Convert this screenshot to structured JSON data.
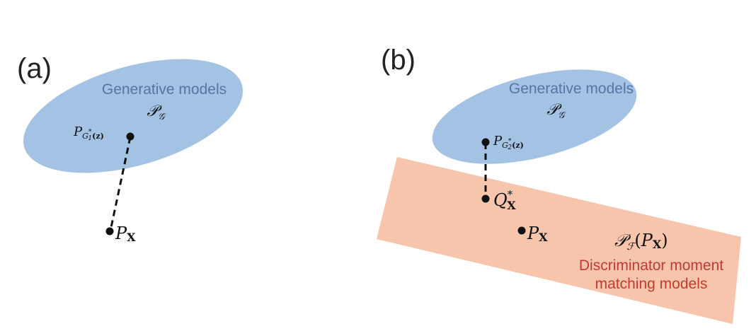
{
  "colors": {
    "ellipse_fill": "#a4c2e4",
    "ellipse_text": "#5874a4",
    "band_fill": "#f7c5ac",
    "band_text": "#c23b30",
    "point": "#111111",
    "math_text": "#111111"
  },
  "panel_a": {
    "label": "(a)",
    "set_title": "Generative models",
    "set_symbol": "𝒫",
    "set_symbol_sub": "𝒢",
    "point_generator": {
      "main": "P",
      "sub": "G",
      "sub_star": "*",
      "sub_index": "1",
      "arg": "(z)"
    },
    "point_data": {
      "main": "P",
      "sub": "X"
    }
  },
  "panel_b": {
    "label": "(b)",
    "set_title": "Generative models",
    "set_symbol": "𝒫",
    "set_symbol_sub": "𝒢",
    "point_generator": {
      "main": "P",
      "sub": "G",
      "sub_star": "*",
      "sub_index": "2",
      "arg": "(z)"
    },
    "point_projection": {
      "main": "Q",
      "sup": "*",
      "sub": "X"
    },
    "point_data": {
      "main": "P",
      "sub": "X"
    },
    "band_symbol": "𝒫",
    "band_symbol_sub": "ℱ",
    "band_symbol_arg_main": "P",
    "band_symbol_arg_sub": "X",
    "band_title_line1": "Discriminator moment",
    "band_title_line2": "matching models"
  }
}
